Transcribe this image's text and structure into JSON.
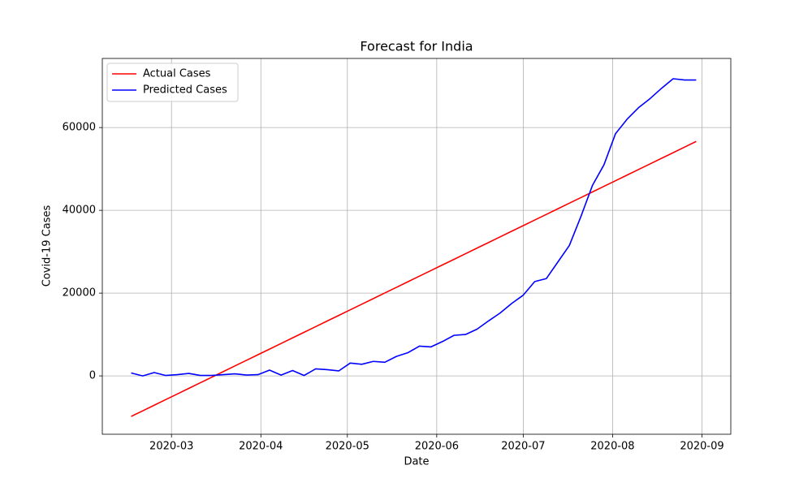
{
  "chart_data": {
    "type": "line",
    "title": "Forecast for India",
    "x_label": "Date",
    "y_label": "Covid-19 Cases",
    "x": [
      "2020-02-16",
      "2020-02-20",
      "2020-02-24",
      "2020-02-28",
      "2020-03-03",
      "2020-03-07",
      "2020-03-11",
      "2020-03-15",
      "2020-03-19",
      "2020-03-23",
      "2020-03-27",
      "2020-03-31",
      "2020-04-04",
      "2020-04-08",
      "2020-04-12",
      "2020-04-16",
      "2020-04-20",
      "2020-04-24",
      "2020-04-28",
      "2020-05-02",
      "2020-05-06",
      "2020-05-10",
      "2020-05-14",
      "2020-05-18",
      "2020-05-22",
      "2020-05-26",
      "2020-05-30",
      "2020-06-03",
      "2020-06-07",
      "2020-06-11",
      "2020-06-15",
      "2020-06-19",
      "2020-06-23",
      "2020-06-27",
      "2020-07-01",
      "2020-07-05",
      "2020-07-09",
      "2020-07-13",
      "2020-07-17",
      "2020-07-21",
      "2020-07-25",
      "2020-07-29",
      "2020-08-02",
      "2020-08-06",
      "2020-08-10",
      "2020-08-14",
      "2020-08-18",
      "2020-08-22",
      "2020-08-26",
      "2020-08-30"
    ],
    "series": [
      {
        "name": "Actual Cases",
        "color": "#ff0000",
        "values": [
          -9800,
          -8444,
          -7088,
          -5732,
          -4376,
          -3020,
          -1664,
          -308,
          1048,
          2404,
          3760,
          5116,
          6472,
          7828,
          9184,
          10540,
          11896,
          13252,
          14608,
          15964,
          17320,
          18676,
          20032,
          21388,
          22744,
          24100,
          25456,
          26812,
          28168,
          29524,
          30880,
          32236,
          33592,
          34948,
          36304,
          37660,
          39016,
          40372,
          41728,
          43084,
          44440,
          45796,
          47152,
          48508,
          49864,
          51220,
          52576,
          53932,
          55288,
          56644
        ]
      },
      {
        "name": "Predicted Cases",
        "color": "#0000ff",
        "values": [
          700,
          0,
          800,
          100,
          300,
          600,
          100,
          100,
          300,
          500,
          200,
          300,
          1400,
          200,
          1300,
          100,
          1700,
          1500,
          1200,
          3100,
          2800,
          3500,
          3300,
          4700,
          5600,
          7200,
          7000,
          8300,
          9800,
          10000,
          11300,
          13300,
          15200,
          17500,
          19500,
          22800,
          23500,
          27500,
          31500,
          38500,
          46000,
          51000,
          58500,
          62000,
          64800,
          67000,
          69500,
          71800,
          71500,
          71500
        ]
      }
    ],
    "xlim": [
      "2020-02-06",
      "2020-09-11"
    ],
    "xticks": [
      {
        "value": "2020-03-01",
        "label": "2020-03"
      },
      {
        "value": "2020-04-01",
        "label": "2020-04"
      },
      {
        "value": "2020-05-01",
        "label": "2020-05"
      },
      {
        "value": "2020-06-01",
        "label": "2020-06"
      },
      {
        "value": "2020-07-01",
        "label": "2020-07"
      },
      {
        "value": "2020-08-01",
        "label": "2020-08"
      },
      {
        "value": "2020-09-01",
        "label": "2020-09"
      }
    ],
    "ylim": [
      -14100,
      76700
    ],
    "yticks": [
      0,
      20000,
      40000,
      60000
    ],
    "grid": true,
    "legend": "upper-left"
  }
}
